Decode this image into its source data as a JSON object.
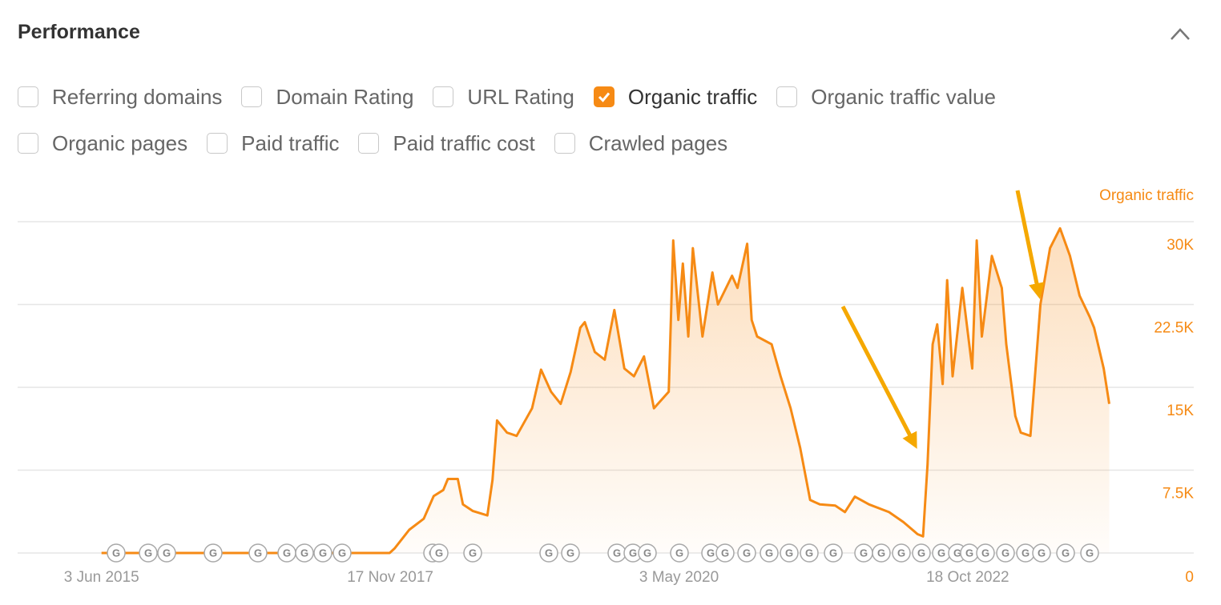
{
  "header": {
    "title": "Performance"
  },
  "metrics": [
    {
      "label": "Referring domains",
      "checked": false
    },
    {
      "label": "Domain Rating",
      "checked": false
    },
    {
      "label": "URL Rating",
      "checked": false
    },
    {
      "label": "Organic traffic",
      "checked": true
    },
    {
      "label": "Organic traffic value",
      "checked": false
    },
    {
      "label": "Organic pages",
      "checked": false
    },
    {
      "label": "Paid traffic",
      "checked": false
    },
    {
      "label": "Paid traffic cost",
      "checked": false
    },
    {
      "label": "Crawled pages",
      "checked": false
    }
  ],
  "update_marker_label": "G",
  "chart_data": {
    "type": "line",
    "x": [
      "2015-06-03",
      "2017-11-15",
      "2017-12-01",
      "2018-01-15",
      "2018-03-01",
      "2018-04-01",
      "2018-05-01",
      "2018-05-15",
      "2018-06-15",
      "2018-07-01",
      "2018-08-01",
      "2018-09-15",
      "2018-10-01",
      "2018-10-15",
      "2018-11-15",
      "2018-12-15",
      "2019-02-01",
      "2019-03-01",
      "2019-04-01",
      "2019-05-01",
      "2019-06-01",
      "2019-07-01",
      "2019-07-15",
      "2019-08-15",
      "2019-09-15",
      "2019-10-15",
      "2019-11-15",
      "2019-12-15",
      "2020-01-15",
      "2020-02-15",
      "2020-04-01",
      "2020-04-15",
      "2020-05-01",
      "2020-05-15",
      "2020-06-01",
      "2020-06-15",
      "2020-07-15",
      "2020-08-15",
      "2020-09-01",
      "2020-10-15",
      "2020-11-01",
      "2020-12-01",
      "2020-12-15",
      "2021-01-01",
      "2021-02-15",
      "2021-03-15",
      "2021-04-15",
      "2021-05-15",
      "2021-06-15",
      "2021-07-15",
      "2021-09-01",
      "2021-10-01",
      "2021-11-01",
      "2021-12-15",
      "2022-02-15",
      "2022-04-01",
      "2022-05-15",
      "2022-06-01",
      "2022-06-15",
      "2022-07-01",
      "2022-07-15",
      "2022-08-01",
      "2022-08-15",
      "2022-09-01",
      "2022-10-01",
      "2022-11-01",
      "2022-11-15",
      "2022-12-01",
      "2023-01-01",
      "2023-02-01",
      "2023-02-15",
      "2023-03-15",
      "2023-04-01",
      "2023-05-01",
      "2023-05-15",
      "2023-06-01",
      "2023-07-01",
      "2023-08-01",
      "2023-09-01",
      "2023-10-01",
      "2023-11-01",
      "2023-11-15",
      "2023-12-15",
      "2024-01-01"
    ],
    "series": [
      {
        "name": "Organic traffic",
        "color": "#f68a14",
        "values": [
          0,
          0,
          430,
          2100,
          3100,
          5150,
          5700,
          6700,
          6700,
          4400,
          3800,
          3400,
          6600,
          12000,
          10900,
          10600,
          13100,
          16600,
          14600,
          13500,
          16400,
          20400,
          20900,
          18200,
          17500,
          22000,
          16700,
          16000,
          17800,
          13100,
          14600,
          28300,
          21100,
          26200,
          19600,
          27600,
          19600,
          25400,
          22500,
          25100,
          24000,
          28000,
          21100,
          19600,
          18900,
          16000,
          13100,
          9500,
          4800,
          4400,
          4300,
          3700,
          5100,
          4400,
          3700,
          2800,
          1700,
          1500,
          8000,
          18900,
          20700,
          15300,
          24700,
          16000,
          24000,
          16700,
          28300,
          19600,
          26900,
          24000,
          18900,
          12400,
          10900,
          10600,
          16000,
          22500,
          27600,
          29400,
          26900,
          23300,
          21400,
          20400,
          16700,
          13500
        ]
      }
    ],
    "xlim": [
      "2014-09-15",
      "2024-09-20"
    ],
    "xticks": [
      {
        "value": "2015-06-03",
        "label": "3 Jun 2015"
      },
      {
        "value": "2017-11-17",
        "label": "17 Nov 2017"
      },
      {
        "value": "2020-05-03",
        "label": "3 May 2020"
      },
      {
        "value": "2022-10-18",
        "label": "18 Oct 2022"
      }
    ],
    "ylim": [
      0,
      30000
    ],
    "yticks": [
      0,
      {
        "value": 7500,
        "label": "7.5K"
      },
      {
        "value": 15000,
        "label": "15K"
      },
      {
        "value": 22500,
        "label": "22.5K"
      },
      {
        "value": 30000,
        "label": "30K"
      }
    ],
    "grid": true
  }
}
